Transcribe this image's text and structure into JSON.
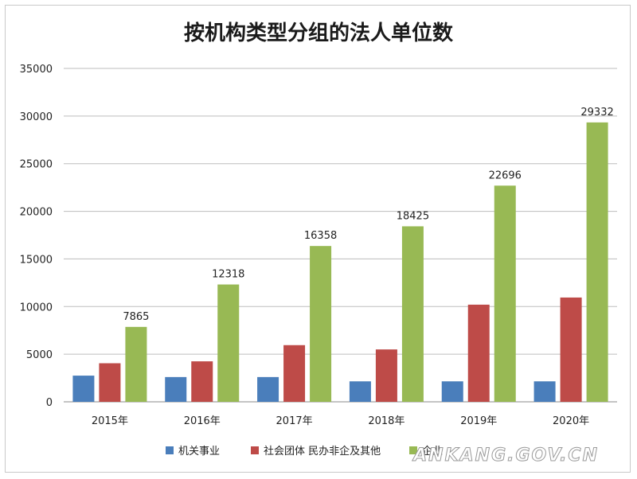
{
  "chart_data": {
    "type": "bar",
    "title": "按机构类型分组的法人单位数",
    "categories": [
      "2015年",
      "2016年",
      "2017年",
      "2018年",
      "2019年",
      "2020年"
    ],
    "series": [
      {
        "name": "机关事业",
        "color": "#4a7ebb",
        "values": [
          2750,
          2600,
          2600,
          2150,
          2150,
          2150
        ]
      },
      {
        "name": "社会团体 民办非企及其他",
        "color": "#be4b48",
        "values": [
          4050,
          4250,
          5950,
          5500,
          10200,
          10950
        ]
      },
      {
        "name": "企业",
        "color": "#98b954",
        "values": [
          7865,
          12318,
          16358,
          18425,
          22696,
          29332
        ],
        "data_labels": [
          "7865",
          "12318",
          "16358",
          "18425",
          "22696",
          "29332"
        ]
      }
    ],
    "ylim": [
      0,
      35000
    ],
    "yticks": [
      "0",
      "5000",
      "10000",
      "15000",
      "20000",
      "25000",
      "30000",
      "35000"
    ],
    "grid": true,
    "legend_position": "bottom"
  },
  "watermark": "ANKANG.GOV.CN"
}
